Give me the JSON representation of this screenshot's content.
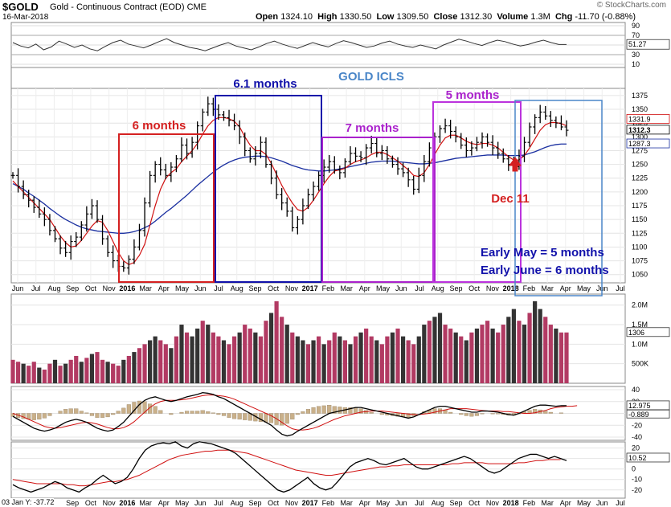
{
  "header": {
    "symbol": "$GOLD",
    "description": "Gold - Continuous Contract (EOD)",
    "exchange": "CME",
    "date": "16-Mar-2018",
    "open_label": "Open",
    "open": "1324.10",
    "high_label": "High",
    "high": "1330.50",
    "low_label": "Low",
    "low": "1309.50",
    "close_label": "Close",
    "close": "1312.30",
    "volume_label": "Volume",
    "volume": "1.3M",
    "chg_label": "Chg",
    "chg": "-11.70 (-0.88%)",
    "logo": "© StockCharts.com"
  },
  "footer_stamp": "03 Jan Y: -37.72",
  "colors": {
    "price_bar": "#000000",
    "ma_short": "#d01010",
    "ma_long": "#1a2fa0",
    "vol_up": "#333333",
    "vol_down": "#b23a63",
    "macd_hist": "#c9b08a",
    "box_red": "#d42020",
    "box_blue": "#1111aa",
    "box_purple": "#aa22cc",
    "box_purple2": "#bb33dd",
    "box_lightblue": "#4a86c8",
    "annot_red": "#d42020",
    "annot_blue": "#1111aa",
    "annot_purple": "#aa22cc",
    "annot_lightblue": "#4a86c8"
  },
  "annotations": {
    "icls": "GOLD ICLS",
    "box1": "6 months",
    "box2": "6.1 months",
    "box3": "7 months",
    "box4": "5 months",
    "dec11": "Dec 11",
    "early_may": "Early May =  5 months",
    "early_june": "Early June = 6 months"
  },
  "chart_data": [
    {
      "type": "line",
      "panel": "rsi",
      "yticks": [
        90,
        70,
        50,
        30,
        10
      ],
      "last_value_label": "51.27",
      "values": [
        55,
        48,
        44,
        52,
        40,
        46,
        58,
        52,
        45,
        50,
        42,
        38,
        47,
        55,
        60,
        52,
        48,
        44,
        50,
        57,
        63,
        55,
        50,
        45,
        42,
        38,
        44,
        50,
        55,
        48,
        44,
        40,
        46,
        53,
        58,
        52,
        47,
        43,
        49,
        55,
        50,
        46,
        53,
        59,
        55,
        50,
        45,
        48,
        54,
        58,
        52,
        48,
        45,
        50,
        46,
        42,
        50,
        56,
        62,
        58,
        53,
        49,
        55,
        60,
        57,
        52,
        48,
        51,
        56,
        60,
        55,
        51,
        51
      ]
    },
    {
      "type": "line",
      "panel": "price",
      "yticks": [
        1375,
        1350,
        1325,
        1300,
        1275,
        1250,
        1225,
        1200,
        1175,
        1150,
        1125,
        1100,
        1075,
        1050
      ],
      "ylim": [
        1035,
        1388
      ],
      "price_labels": [
        "1331.9",
        "1312.3",
        "1287.3"
      ],
      "xticks": [
        "Jun",
        "Jul",
        "Aug",
        "Sep",
        "Oct",
        "Nov",
        "2016",
        "Mar",
        "Apr",
        "May",
        "Jun",
        "Jul",
        "Aug",
        "Sep",
        "Oct",
        "Nov",
        "2017",
        "Feb",
        "Mar",
        "Apr",
        "May",
        "Jun",
        "Jul",
        "Aug",
        "Sep",
        "Oct",
        "Nov",
        "2018",
        "Feb",
        "Mar",
        "Apr",
        "May",
        "Jun",
        "Jul"
      ],
      "closes": [
        1230,
        1210,
        1195,
        1185,
        1172,
        1160,
        1150,
        1130,
        1115,
        1098,
        1090,
        1110,
        1118,
        1140,
        1160,
        1175,
        1150,
        1115,
        1090,
        1075,
        1065,
        1062,
        1078,
        1100,
        1130,
        1180,
        1230,
        1250,
        1240,
        1230,
        1245,
        1260,
        1285,
        1270,
        1290,
        1320,
        1345,
        1360,
        1350,
        1340,
        1335,
        1330,
        1320,
        1300,
        1275,
        1260,
        1270,
        1290,
        1250,
        1225,
        1195,
        1180,
        1165,
        1135,
        1150,
        1175,
        1195,
        1210,
        1230,
        1245,
        1255,
        1240,
        1235,
        1255,
        1270,
        1265,
        1262,
        1280,
        1288,
        1270,
        1275,
        1260,
        1250,
        1242,
        1235,
        1222,
        1205,
        1230,
        1255,
        1280,
        1300,
        1315,
        1320,
        1310,
        1300,
        1285,
        1275,
        1280,
        1290,
        1300,
        1290,
        1280,
        1270,
        1260,
        1250,
        1246,
        1265,
        1290,
        1318,
        1335,
        1345,
        1338,
        1330,
        1325,
        1318,
        1312
      ],
      "ma_short": [
        1220,
        1210,
        1200,
        1190,
        1180,
        1170,
        1160,
        1150,
        1135,
        1120,
        1108,
        1100,
        1102,
        1112,
        1125,
        1138,
        1148,
        1145,
        1130,
        1110,
        1090,
        1075,
        1068,
        1072,
        1085,
        1105,
        1140,
        1175,
        1205,
        1225,
        1235,
        1242,
        1255,
        1265,
        1275,
        1288,
        1305,
        1320,
        1330,
        1335,
        1335,
        1333,
        1328,
        1318,
        1300,
        1285,
        1275,
        1275,
        1268,
        1252,
        1232,
        1212,
        1195,
        1180,
        1168,
        1165,
        1172,
        1185,
        1200,
        1215,
        1228,
        1238,
        1240,
        1243,
        1250,
        1255,
        1258,
        1262,
        1268,
        1272,
        1272,
        1268,
        1262,
        1256,
        1248,
        1240,
        1230,
        1228,
        1235,
        1250,
        1268,
        1285,
        1298,
        1303,
        1303,
        1298,
        1292,
        1288,
        1286,
        1288,
        1288,
        1285,
        1280,
        1272,
        1264,
        1258,
        1258,
        1266,
        1280,
        1296,
        1312,
        1322,
        1326,
        1326,
        1324,
        1320
      ],
      "ma_long": [
        1215,
        1210,
        1205,
        1198,
        1192,
        1185,
        1178,
        1170,
        1163,
        1156,
        1150,
        1145,
        1140,
        1136,
        1133,
        1131,
        1129,
        1128,
        1127,
        1126,
        1125,
        1125,
        1126,
        1128,
        1131,
        1135,
        1140,
        1147,
        1155,
        1163,
        1170,
        1178,
        1186,
        1194,
        1203,
        1212,
        1220,
        1228,
        1236,
        1243,
        1249,
        1254,
        1258,
        1261,
        1263,
        1264,
        1265,
        1265,
        1264,
        1262,
        1259,
        1256,
        1252,
        1248,
        1245,
        1242,
        1240,
        1239,
        1238,
        1238,
        1239,
        1240,
        1242,
        1244,
        1246,
        1248,
        1250,
        1252,
        1254,
        1255,
        1256,
        1256,
        1256,
        1255,
        1254,
        1253,
        1252,
        1251,
        1251,
        1252,
        1253,
        1255,
        1257,
        1259,
        1261,
        1262,
        1263,
        1264,
        1265,
        1266,
        1267,
        1267,
        1267,
        1267,
        1266,
        1266,
        1266,
        1267,
        1270,
        1273,
        1277,
        1281,
        1284,
        1286,
        1287,
        1287
      ]
    },
    {
      "type": "bar",
      "panel": "volume",
      "yticks": [
        "2.0M",
        "1.5M",
        "1.0M",
        "500K"
      ],
      "last_value_label": "1306",
      "values": [
        0.6,
        0.55,
        0.5,
        0.45,
        0.55,
        0.4,
        0.35,
        0.5,
        0.6,
        0.45,
        0.5,
        0.6,
        0.7,
        0.55,
        0.65,
        0.75,
        0.8,
        0.6,
        0.55,
        0.5,
        0.45,
        0.6,
        0.7,
        0.8,
        0.9,
        1.0,
        1.1,
        1.2,
        1.1,
        1.0,
        0.9,
        1.2,
        1.5,
        1.3,
        1.2,
        1.4,
        1.6,
        1.5,
        1.3,
        1.2,
        1.1,
        1.0,
        1.2,
        1.3,
        1.5,
        1.4,
        1.3,
        1.2,
        1.6,
        1.8,
        2.1,
        1.7,
        1.5,
        1.3,
        1.2,
        1.1,
        1.0,
        1.1,
        1.2,
        1.0,
        1.1,
        1.3,
        1.2,
        1.1,
        1.0,
        1.2,
        1.3,
        1.4,
        1.2,
        1.1,
        1.0,
        1.2,
        1.3,
        1.4,
        1.2,
        1.1,
        1.0,
        1.2,
        1.5,
        1.6,
        1.7,
        1.8,
        1.5,
        1.4,
        1.3,
        1.2,
        1.1,
        1.3,
        1.4,
        1.5,
        1.6,
        1.4,
        1.3,
        1.5,
        1.7,
        1.9,
        1.6,
        1.5,
        1.8,
        2.1,
        1.9,
        1.7,
        1.5,
        1.4,
        1.3,
        1.3
      ],
      "up": [
        0,
        0,
        1,
        0,
        0,
        1,
        0,
        0,
        1,
        0,
        1,
        0,
        0,
        1,
        0,
        1,
        0,
        0,
        1,
        0,
        0,
        1,
        0,
        1,
        0,
        0,
        1,
        1,
        0,
        0,
        1,
        0,
        1,
        0,
        1,
        1,
        0,
        1,
        0,
        0,
        1,
        0,
        0,
        1,
        0,
        0,
        1,
        0,
        0,
        1,
        0,
        0,
        1,
        0,
        1,
        1,
        0,
        1,
        0,
        1,
        0,
        0,
        1,
        0,
        1,
        0,
        1,
        0,
        0,
        1,
        0,
        0,
        1,
        0,
        1,
        0,
        0,
        1,
        1,
        0,
        1,
        1,
        0,
        0,
        1,
        0,
        1,
        0,
        1,
        0,
        0,
        1,
        0,
        0,
        1,
        1,
        0,
        1,
        0,
        1,
        1,
        0,
        0,
        1,
        0,
        0
      ]
    },
    {
      "type": "line",
      "panel": "macd",
      "yticks": [
        40,
        20,
        0,
        -20,
        -40
      ],
      "labels": [
        "12.975",
        "-0.889"
      ],
      "macd": [
        -5,
        -10,
        -15,
        -20,
        -25,
        -28,
        -30,
        -28,
        -25,
        -20,
        -15,
        -12,
        -10,
        -12,
        -15,
        -20,
        -25,
        -28,
        -30,
        -28,
        -22,
        -15,
        -5,
        5,
        15,
        22,
        26,
        28,
        25,
        22,
        20,
        22,
        25,
        28,
        30,
        32,
        35,
        34,
        32,
        28,
        25,
        20,
        15,
        10,
        5,
        0,
        -5,
        -10,
        -15,
        -20,
        -28,
        -35,
        -38,
        -36,
        -30,
        -25,
        -20,
        -15,
        -10,
        -5,
        0,
        2,
        4,
        6,
        8,
        10,
        10,
        8,
        6,
        4,
        2,
        0,
        -2,
        -4,
        -6,
        -8,
        -6,
        -2,
        2,
        6,
        10,
        12,
        12,
        10,
        8,
        6,
        4,
        2,
        2,
        4,
        4,
        3,
        2,
        0,
        -2,
        -3,
        0,
        4,
        8,
        12,
        14,
        14,
        13,
        12,
        13,
        13
      ],
      "signal": [
        0,
        -3,
        -6,
        -10,
        -14,
        -18,
        -22,
        -24,
        -25,
        -24,
        -22,
        -20,
        -18,
        -16,
        -15,
        -16,
        -18,
        -21,
        -24,
        -26,
        -26,
        -24,
        -20,
        -14,
        -6,
        2,
        10,
        16,
        20,
        22,
        22,
        22,
        23,
        24,
        26,
        28,
        30,
        31,
        31,
        30,
        29,
        27,
        24,
        20,
        16,
        12,
        8,
        4,
        0,
        -4,
        -9,
        -15,
        -21,
        -26,
        -28,
        -28,
        -27,
        -25,
        -22,
        -18,
        -14,
        -10,
        -7,
        -4,
        -2,
        0,
        2,
        3,
        4,
        4,
        4,
        3,
        2,
        1,
        0,
        -1,
        -2,
        -2,
        -1,
        0,
        2,
        4,
        6,
        8,
        8,
        8,
        8,
        7,
        6,
        5,
        4,
        4,
        4,
        3,
        3,
        2,
        1,
        0,
        0,
        1,
        3,
        5,
        8,
        10,
        11,
        12,
        12,
        13
      ],
      "hist": [
        -5,
        -7,
        -9,
        -10,
        -11,
        -10,
        -8,
        -4,
        0,
        4,
        7,
        8,
        8,
        4,
        1,
        -4,
        -7,
        -7,
        -6,
        -2,
        4,
        9,
        15,
        19,
        21,
        20,
        16,
        12,
        5,
        0,
        -2,
        0,
        2,
        4,
        4,
        4,
        5,
        3,
        1,
        -2,
        -4,
        -7,
        -9,
        -10,
        -11,
        -12,
        -13,
        -14,
        -15,
        -16,
        -19,
        -20,
        -17,
        -10,
        -2,
        3,
        7,
        10,
        12,
        13,
        14,
        12,
        11,
        10,
        10,
        10,
        8,
        5,
        2,
        0,
        -2,
        -3,
        -4,
        -5,
        -6,
        -7,
        -4,
        0,
        3,
        6,
        8,
        8,
        6,
        2,
        0,
        -2,
        -4,
        -5,
        -4,
        -1,
        0,
        -1,
        -1,
        -2,
        -3,
        -3,
        -1,
        3,
        5,
        7,
        6,
        4,
        2,
        0,
        1,
        0
      ]
    },
    {
      "type": "line",
      "panel": "osc",
      "yticks": [
        20,
        10,
        0,
        -10,
        -20
      ],
      "labels": [
        "10.52"
      ],
      "line": [
        -15,
        -18,
        -20,
        -22,
        -20,
        -18,
        -15,
        -12,
        -14,
        -18,
        -20,
        -22,
        -18,
        -15,
        -10,
        -6,
        -10,
        -14,
        -12,
        -8,
        0,
        10,
        18,
        22,
        24,
        25,
        24,
        26,
        22,
        20,
        24,
        26,
        25,
        24,
        22,
        20,
        18,
        15,
        10,
        5,
        0,
        -5,
        -10,
        -15,
        -20,
        -22,
        -20,
        -16,
        -12,
        -8,
        -14,
        -18,
        -20,
        -18,
        -12,
        -5,
        2,
        6,
        8,
        10,
        8,
        5,
        4,
        6,
        8,
        10,
        6,
        2,
        0,
        0,
        2,
        4,
        6,
        8,
        10,
        12,
        10,
        6,
        2,
        -2,
        -4,
        -2,
        2,
        6,
        10,
        12,
        14,
        14,
        12,
        10,
        12,
        10,
        8
      ],
      "ma": [
        -10,
        -11,
        -12,
        -13,
        -14,
        -14,
        -14,
        -14,
        -14,
        -15,
        -15,
        -16,
        -16,
        -15,
        -14,
        -13,
        -12,
        -12,
        -11,
        -10,
        -8,
        -6,
        -3,
        0,
        3,
        6,
        9,
        11,
        13,
        14,
        15,
        16,
        17,
        17,
        18,
        18,
        18,
        17,
        16,
        15,
        13,
        11,
        9,
        7,
        5,
        3,
        1,
        -1,
        -2,
        -3,
        -4,
        -5,
        -6,
        -6,
        -5,
        -4,
        -3,
        -2,
        -1,
        0,
        1,
        2,
        2,
        3,
        3,
        4,
        4,
        4,
        4,
        4,
        4,
        4,
        4,
        5,
        5,
        6,
        6,
        6,
        6,
        5,
        5,
        5,
        5,
        5,
        6,
        6,
        7,
        8,
        8,
        9,
        9,
        9
      ]
    }
  ]
}
